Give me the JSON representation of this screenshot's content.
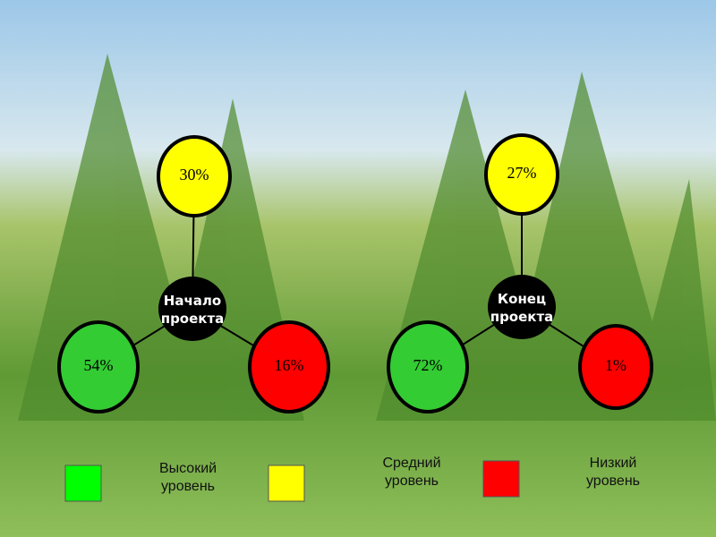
{
  "diagrams": [
    {
      "center": [
        "Начало",
        "проекта"
      ],
      "nodes": [
        {
          "label": "30%",
          "color": "#ffff00"
        },
        {
          "label": "54%",
          "color": "#33cc33"
        },
        {
          "label": "16%",
          "color": "#ff0000"
        }
      ]
    },
    {
      "center": [
        "Конец",
        "проекта"
      ],
      "nodes": [
        {
          "label": "27%",
          "color": "#ffff00"
        },
        {
          "label": "72%",
          "color": "#33cc33"
        },
        {
          "label": "1%",
          "color": "#ff0000"
        }
      ]
    }
  ],
  "legend": [
    {
      "color": "#00ff00",
      "label": [
        "Высокий",
        "уровень"
      ]
    },
    {
      "color": "#ffff00",
      "label": [
        "Средний",
        "уровень"
      ]
    },
    {
      "color": "#ff0000",
      "label": [
        "Низкий",
        "уровень"
      ]
    }
  ]
}
